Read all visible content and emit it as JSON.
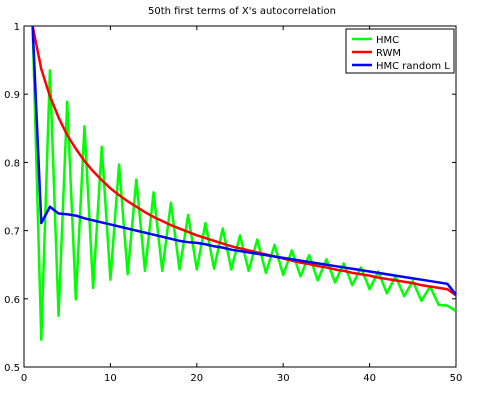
{
  "chart_data": {
    "type": "line",
    "title": "50th first terms of X's autocorrelation",
    "xlabel": "",
    "ylabel": "",
    "xlim": [
      0,
      50
    ],
    "ylim": [
      0.5,
      1
    ],
    "xticks": [
      "0",
      "10",
      "20",
      "30",
      "40",
      "50"
    ],
    "yticks": [
      "0.5",
      "0.6",
      "0.7",
      "0.8",
      "0.9",
      "1"
    ],
    "grid": false,
    "legend": "top-right",
    "x": [
      1,
      2,
      3,
      4,
      5,
      6,
      7,
      8,
      9,
      10,
      11,
      12,
      13,
      14,
      15,
      16,
      17,
      18,
      19,
      20,
      21,
      22,
      23,
      24,
      25,
      26,
      27,
      28,
      29,
      30,
      31,
      32,
      33,
      34,
      35,
      36,
      37,
      38,
      39,
      40,
      41,
      42,
      43,
      44,
      45,
      46,
      47,
      48,
      49,
      50
    ],
    "series": [
      {
        "name": "HMC",
        "color": "#00ff00",
        "values": [
          1.0,
          0.54,
          0.935,
          0.575,
          0.889,
          0.599,
          0.853,
          0.616,
          0.823,
          0.628,
          0.797,
          0.636,
          0.775,
          0.641,
          0.756,
          0.641,
          0.741,
          0.643,
          0.723,
          0.643,
          0.711,
          0.644,
          0.703,
          0.643,
          0.693,
          0.641,
          0.687,
          0.638,
          0.679,
          0.635,
          0.671,
          0.633,
          0.664,
          0.627,
          0.658,
          0.624,
          0.652,
          0.62,
          0.646,
          0.614,
          0.64,
          0.608,
          0.633,
          0.604,
          0.626,
          0.597,
          0.618,
          0.591,
          0.59,
          0.582
        ]
      },
      {
        "name": "RWM",
        "color": "#ff0000",
        "values": [
          1.0,
          0.937,
          0.897,
          0.866,
          0.84,
          0.82,
          0.802,
          0.787,
          0.774,
          0.762,
          0.752,
          0.743,
          0.735,
          0.727,
          0.72,
          0.714,
          0.708,
          0.703,
          0.698,
          0.693,
          0.689,
          0.685,
          0.681,
          0.677,
          0.674,
          0.671,
          0.668,
          0.665,
          0.662,
          0.659,
          0.656,
          0.653,
          0.651,
          0.648,
          0.646,
          0.643,
          0.641,
          0.638,
          0.636,
          0.634,
          0.631,
          0.629,
          0.627,
          0.625,
          0.623,
          0.62,
          0.618,
          0.616,
          0.614,
          0.605
        ]
      },
      {
        "name": "HMC random L",
        "color": "#0000ff",
        "values": [
          1.0,
          0.711,
          0.735,
          0.725,
          0.724,
          0.722,
          0.718,
          0.715,
          0.712,
          0.709,
          0.706,
          0.703,
          0.7,
          0.697,
          0.694,
          0.691,
          0.688,
          0.685,
          0.683,
          0.682,
          0.68,
          0.677,
          0.675,
          0.672,
          0.67,
          0.668,
          0.666,
          0.664,
          0.662,
          0.66,
          0.658,
          0.656,
          0.654,
          0.652,
          0.65,
          0.648,
          0.646,
          0.644,
          0.642,
          0.64,
          0.638,
          0.636,
          0.634,
          0.632,
          0.63,
          0.628,
          0.626,
          0.624,
          0.622,
          0.606
        ]
      }
    ]
  }
}
